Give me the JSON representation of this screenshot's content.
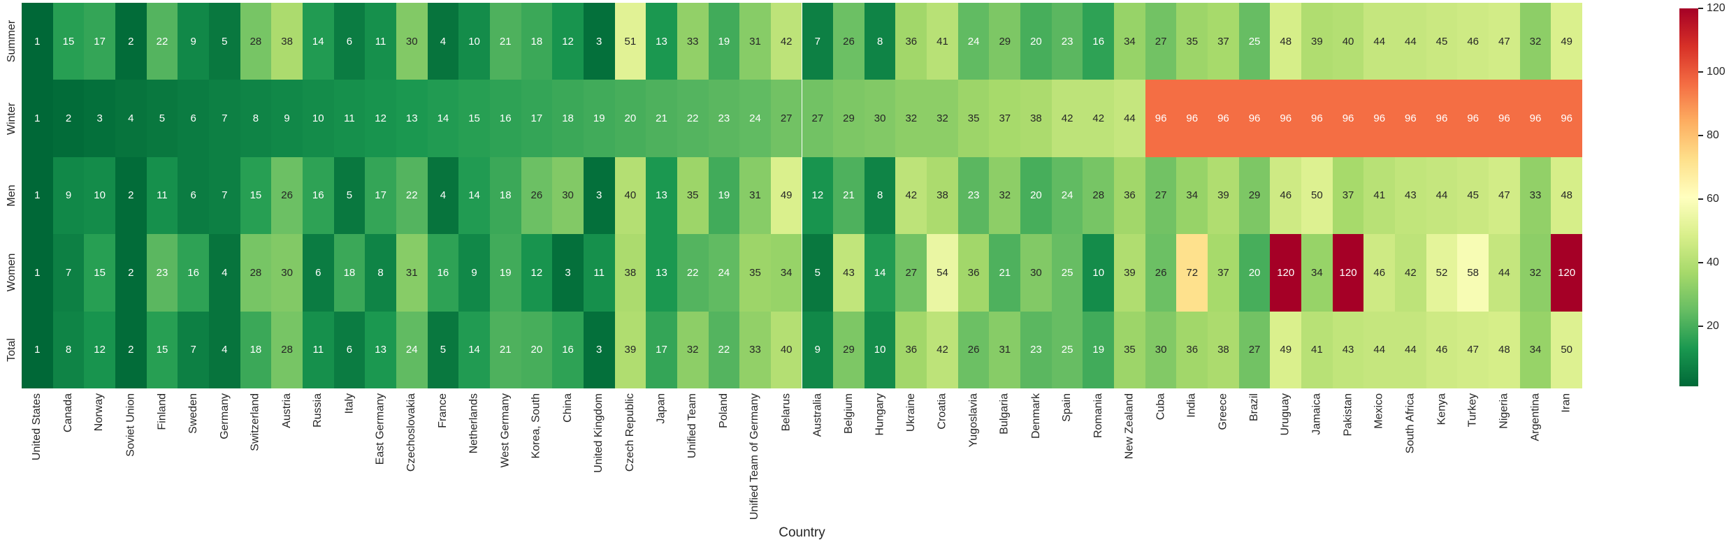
{
  "chart_data": {
    "type": "heatmap",
    "xlabel": "Country",
    "ylabel": "",
    "rows": [
      "Summer",
      "Winter",
      "Men",
      "Women",
      "Total"
    ],
    "columns": [
      "United States",
      "Canada",
      "Norway",
      "Soviet Union",
      "Finland",
      "Sweden",
      "Germany",
      "Switzerland",
      "Austria",
      "Russia",
      "Italy",
      "East Germany",
      "Czechoslovakia",
      "France",
      "Netherlands",
      "West Germany",
      "Korea, South",
      "China",
      "United Kingdom",
      "Czech Republic",
      "Japan",
      "Unified Team",
      "Poland",
      "Unified Team of Germany",
      "Belarus",
      "Australia",
      "Belgium",
      "Hungary",
      "Ukraine",
      "Croatia",
      "Yugoslavia",
      "Bulgaria",
      "Denmark",
      "Spain",
      "Romania",
      "New Zealand",
      "Cuba",
      "India",
      "Greece",
      "Brazil",
      "Uruguay",
      "Jamaica",
      "Pakistan",
      "Mexico",
      "South Africa",
      "Kenya",
      "Turkey",
      "Nigeria",
      "Argentina",
      "Iran"
    ],
    "series": [
      {
        "name": "Summer",
        "values": [
          1,
          15,
          17,
          2,
          22,
          9,
          5,
          28,
          38,
          14,
          6,
          11,
          30,
          4,
          10,
          21,
          18,
          12,
          3,
          51,
          13,
          33,
          19,
          31,
          42,
          7,
          26,
          8,
          36,
          41,
          24,
          29,
          20,
          23,
          16,
          34,
          27,
          35,
          37,
          25,
          48,
          39,
          40,
          44,
          44,
          45,
          46,
          47,
          32,
          49
        ]
      },
      {
        "name": "Winter",
        "values": [
          1,
          2,
          3,
          4,
          5,
          6,
          7,
          8,
          9,
          10,
          11,
          12,
          13,
          14,
          15,
          16,
          17,
          18,
          19,
          20,
          21,
          22,
          23,
          24,
          27,
          27,
          29,
          30,
          32,
          32,
          35,
          37,
          38,
          42,
          42,
          44,
          96,
          96,
          96,
          96,
          96,
          96,
          96,
          96,
          96,
          96,
          96,
          96,
          96,
          96
        ]
      },
      {
        "name": "Men",
        "values": [
          1,
          9,
          10,
          2,
          11,
          6,
          7,
          15,
          26,
          16,
          5,
          17,
          22,
          4,
          14,
          18,
          26,
          30,
          3,
          40,
          13,
          35,
          19,
          31,
          49,
          12,
          21,
          8,
          42,
          38,
          23,
          32,
          20,
          24,
          28,
          36,
          27,
          34,
          39,
          29,
          46,
          50,
          37,
          41,
          43,
          44,
          45,
          47,
          33,
          48
        ]
      },
      {
        "name": "Women",
        "values": [
          1,
          7,
          15,
          2,
          23,
          16,
          4,
          28,
          30,
          6,
          18,
          8,
          31,
          16,
          9,
          19,
          12,
          3,
          11,
          38,
          13,
          22,
          24,
          35,
          34,
          5,
          43,
          14,
          27,
          54,
          36,
          21,
          30,
          25,
          10,
          39,
          26,
          72,
          37,
          20,
          120,
          34,
          120,
          46,
          42,
          52,
          58,
          44,
          32,
          120
        ]
      },
      {
        "name": "Total",
        "values": [
          1,
          8,
          12,
          2,
          15,
          7,
          4,
          18,
          28,
          11,
          6,
          13,
          24,
          5,
          14,
          21,
          20,
          16,
          3,
          39,
          17,
          32,
          22,
          33,
          40,
          9,
          29,
          10,
          36,
          42,
          26,
          31,
          23,
          25,
          19,
          35,
          30,
          36,
          38,
          27,
          49,
          41,
          43,
          44,
          44,
          46,
          47,
          48,
          34,
          50
        ]
      }
    ],
    "annotated": true,
    "grid": false,
    "colormap": "RdYlGn_r",
    "vmin": 1,
    "vmax": 120,
    "colorbar": {
      "position": "right",
      "ticks": [
        120,
        100,
        80,
        60,
        40,
        20
      ]
    }
  },
  "colors": {
    "colormap_stops_low_to_high": [
      "#006837",
      "#1a9850",
      "#66bd63",
      "#a6d96a",
      "#d9ef8b",
      "#ffffbf",
      "#fee08b",
      "#fdae61",
      "#f46d43",
      "#d73027",
      "#a50026"
    ],
    "annotation_text_dark": "#262626",
    "annotation_text_light": "#ffffff",
    "tick_label_color": "#262626",
    "background": "#ffffff"
  }
}
